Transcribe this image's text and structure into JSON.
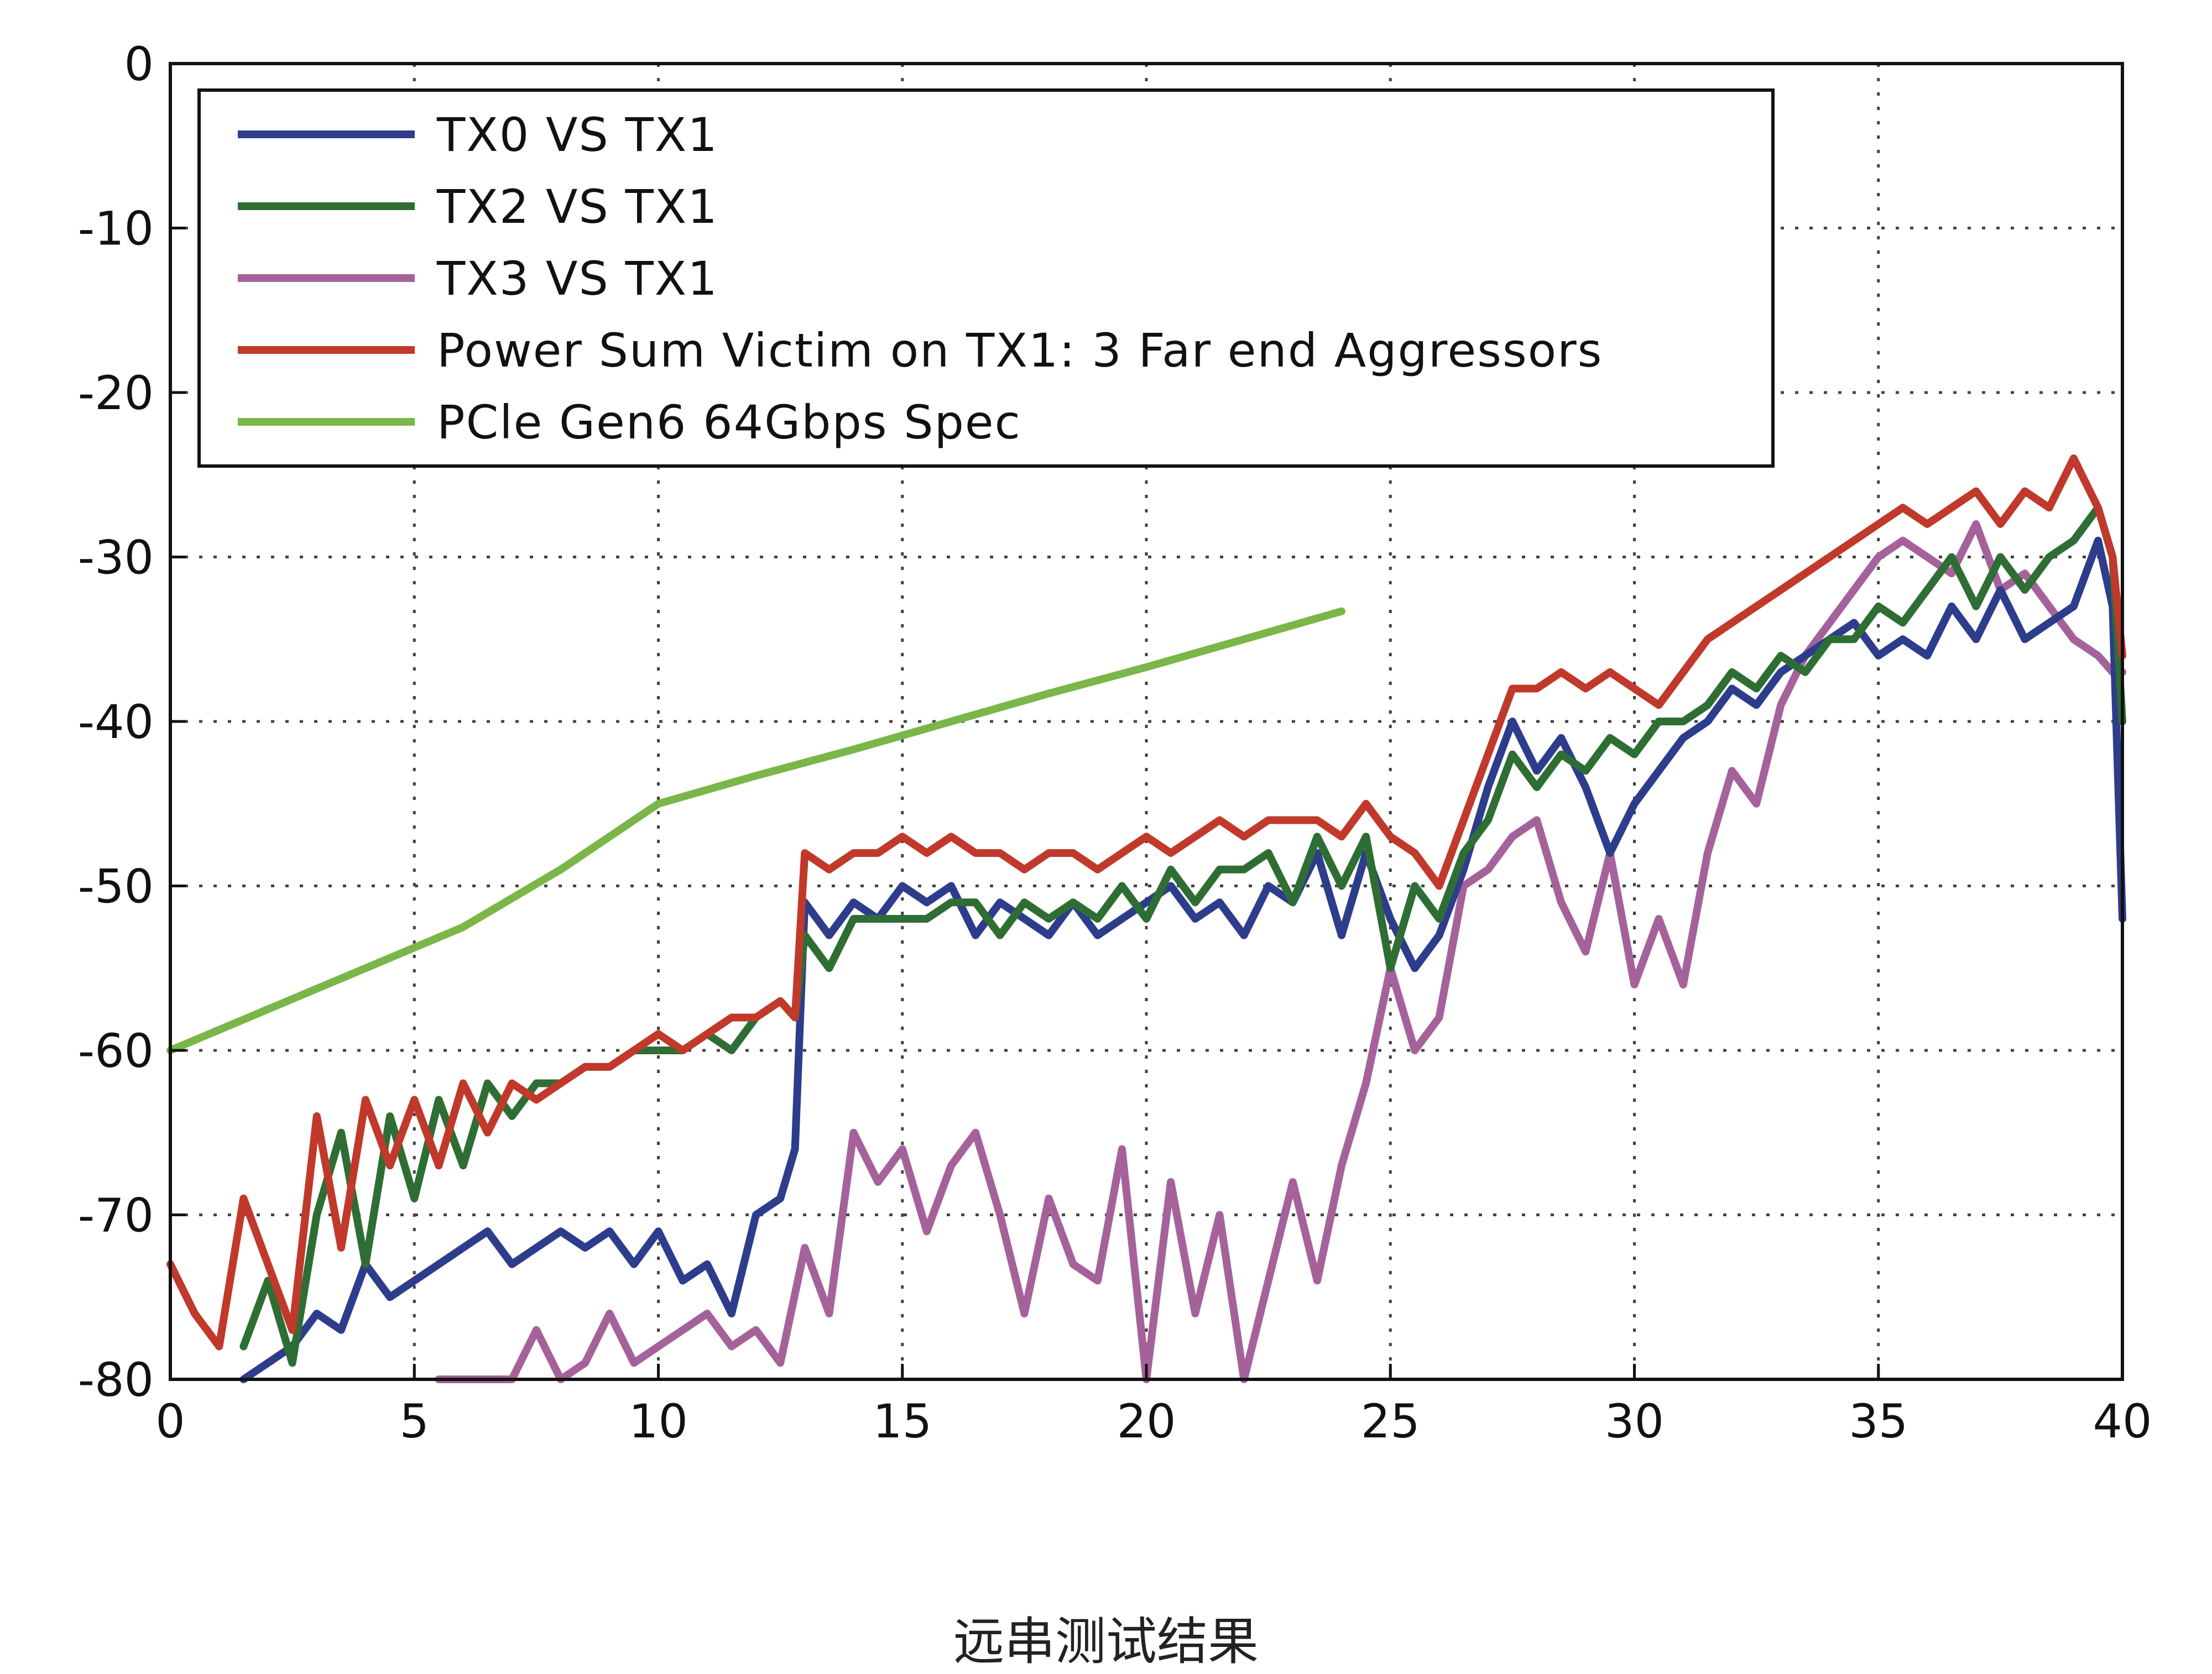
{
  "caption": "远串测试结果",
  "chart_data": {
    "type": "line",
    "title": "",
    "xlabel": "",
    "ylabel": "",
    "xlim": [
      0,
      40
    ],
    "ylim": [
      -80,
      0
    ],
    "x_ticks": [
      0,
      5,
      10,
      15,
      20,
      25,
      30,
      35,
      40
    ],
    "y_ticks": [
      0,
      -10,
      -20,
      -30,
      -40,
      -50,
      -60,
      -70,
      -80
    ],
    "x_tick_labels": [
      "0",
      "5",
      "10",
      "15",
      "20",
      "25",
      "30",
      "35",
      "40"
    ],
    "y_tick_labels": [
      "0",
      "-10",
      "-20",
      "-30",
      "-40",
      "-50",
      "-60",
      "-70",
      "-80"
    ],
    "grid": true,
    "legend_position": "top-left",
    "series": [
      {
        "name": "TX0 VS TX1",
        "color": "#2e3c8c",
        "x": [
          1.5,
          2.0,
          2.5,
          3.0,
          3.5,
          4.0,
          4.5,
          5.0,
          5.5,
          6.0,
          6.5,
          7.0,
          7.5,
          8.0,
          8.5,
          9.0,
          9.5,
          10.0,
          10.5,
          11.0,
          11.5,
          12.0,
          12.5,
          12.8,
          13.0,
          13.5,
          14.0,
          14.5,
          15.0,
          15.5,
          16.0,
          16.5,
          17.0,
          17.5,
          18.0,
          18.5,
          19.0,
          19.5,
          20.0,
          20.5,
          21.0,
          21.5,
          22.0,
          22.5,
          23.0,
          23.5,
          24.0,
          24.5,
          25.0,
          25.5,
          26.0,
          26.5,
          27.0,
          27.5,
          28.0,
          28.5,
          29.0,
          29.5,
          30.0,
          30.5,
          31.0,
          31.5,
          32.0,
          32.5,
          33.0,
          33.5,
          34.0,
          34.5,
          35.0,
          35.5,
          36.0,
          36.5,
          37.0,
          37.5,
          38.0,
          38.5,
          39.0,
          39.5,
          39.8,
          40.0
        ],
        "values": [
          -80,
          -79,
          -78,
          -76,
          -77,
          -73,
          -75,
          -74,
          -73,
          -72,
          -71,
          -73,
          -72,
          -71,
          -72,
          -71,
          -73,
          -71,
          -74,
          -73,
          -76,
          -70,
          -69,
          -66,
          -51,
          -53,
          -51,
          -52,
          -50,
          -51,
          -50,
          -53,
          -51,
          -52,
          -53,
          -51,
          -53,
          -52,
          -51,
          -50,
          -52,
          -51,
          -53,
          -50,
          -51,
          -48,
          -53,
          -48,
          -52,
          -55,
          -53,
          -49,
          -44,
          -40,
          -43,
          -41,
          -44,
          -48,
          -45,
          -43,
          -41,
          -40,
          -38,
          -39,
          -37,
          -36,
          -35,
          -34,
          -36,
          -35,
          -36,
          -33,
          -35,
          -32,
          -35,
          -34,
          -33,
          -29,
          -33,
          -52
        ]
      },
      {
        "name": "TX2 VS TX1",
        "color": "#2e6e34",
        "x": [
          1.5,
          2.0,
          2.5,
          3.0,
          3.5,
          4.0,
          4.5,
          5.0,
          5.5,
          6.0,
          6.5,
          7.0,
          7.5,
          8.0,
          8.5,
          9.0,
          9.5,
          10.0,
          10.5,
          11.0,
          11.5,
          12.0,
          12.5,
          12.8,
          13.0,
          13.5,
          14.0,
          14.5,
          15.0,
          15.5,
          16.0,
          16.5,
          17.0,
          17.5,
          18.0,
          18.5,
          19.0,
          19.5,
          20.0,
          20.5,
          21.0,
          21.5,
          22.0,
          22.5,
          23.0,
          23.5,
          24.0,
          24.5,
          25.0,
          25.5,
          26.0,
          26.5,
          27.0,
          27.5,
          28.0,
          28.5,
          29.0,
          29.5,
          30.0,
          30.5,
          31.0,
          31.5,
          32.0,
          32.5,
          33.0,
          33.5,
          34.0,
          34.5,
          35.0,
          35.5,
          36.0,
          36.5,
          37.0,
          37.5,
          38.0,
          38.5,
          39.0,
          39.5,
          39.8,
          40.0
        ],
        "values": [
          -78,
          -74,
          -79,
          -70,
          -65,
          -73,
          -64,
          -69,
          -63,
          -67,
          -62,
          -64,
          -62,
          -62,
          -61,
          -61,
          -60,
          -60,
          -60,
          -59,
          -60,
          -58,
          -57,
          -58,
          -53,
          -55,
          -52,
          -52,
          -52,
          -52,
          -51,
          -51,
          -53,
          -51,
          -52,
          -51,
          -52,
          -50,
          -52,
          -49,
          -51,
          -49,
          -49,
          -48,
          -51,
          -47,
          -50,
          -47,
          -55,
          -50,
          -52,
          -48,
          -46,
          -42,
          -44,
          -42,
          -43,
          -41,
          -42,
          -40,
          -40,
          -39,
          -37,
          -38,
          -36,
          -37,
          -35,
          -35,
          -33,
          -34,
          -32,
          -30,
          -33,
          -30,
          -32,
          -30,
          -29,
          -27,
          -30,
          -40
        ]
      },
      {
        "name": "TX3 VS TX1",
        "color": "#a5629a",
        "x": [
          5.5,
          6.0,
          6.5,
          7.0,
          7.5,
          8.0,
          8.5,
          9.0,
          9.5,
          10.0,
          10.5,
          11.0,
          11.5,
          12.0,
          12.5,
          13.0,
          13.5,
          14.0,
          14.5,
          15.0,
          15.5,
          16.0,
          16.5,
          17.0,
          17.5,
          18.0,
          18.5,
          19.0,
          19.5,
          20.0,
          20.5,
          21.0,
          21.5,
          22.0,
          22.5,
          23.0,
          23.5,
          24.0,
          24.5,
          25.0,
          25.5,
          26.0,
          26.5,
          27.0,
          27.5,
          28.0,
          28.5,
          29.0,
          29.5,
          30.0,
          30.5,
          31.0,
          31.5,
          32.0,
          32.5,
          33.0,
          33.5,
          34.0,
          34.5,
          35.0,
          35.5,
          36.0,
          36.5,
          37.0,
          37.5,
          38.0,
          38.5,
          39.0,
          39.5,
          39.8,
          40.0
        ],
        "values": [
          -80,
          -80,
          -80,
          -80,
          -77,
          -80,
          -79,
          -76,
          -79,
          -78,
          -77,
          -76,
          -78,
          -77,
          -79,
          -72,
          -76,
          -65,
          -68,
          -66,
          -71,
          -67,
          -65,
          -70,
          -76,
          -69,
          -73,
          -74,
          -66,
          -80,
          -68,
          -76,
          -70,
          -80,
          -74,
          -68,
          -74,
          -67,
          -62,
          -55,
          -60,
          -58,
          -50,
          -49,
          -47,
          -46,
          -51,
          -54,
          -48,
          -56,
          -52,
          -56,
          -48,
          -43,
          -45,
          -39,
          -36,
          -34,
          -32,
          -30,
          -29,
          -30,
          -31,
          -28,
          -32,
          -31,
          -33,
          -35,
          -36,
          -37,
          -37
        ]
      },
      {
        "name": "Power Sum Victim on TX1:   3 Far end Aggressors",
        "color": "#c0392b",
        "x": [
          0.0,
          0.5,
          1.0,
          1.5,
          2.0,
          2.5,
          3.0,
          3.5,
          4.0,
          4.5,
          5.0,
          5.5,
          6.0,
          6.5,
          7.0,
          7.5,
          8.0,
          8.5,
          9.0,
          9.5,
          10.0,
          10.5,
          11.0,
          11.5,
          12.0,
          12.5,
          12.8,
          13.0,
          13.5,
          14.0,
          14.5,
          15.0,
          15.5,
          16.0,
          16.5,
          17.0,
          17.5,
          18.0,
          18.5,
          19.0,
          19.5,
          20.0,
          20.5,
          21.0,
          21.5,
          22.0,
          22.5,
          23.0,
          23.5,
          24.0,
          24.5,
          25.0,
          25.5,
          26.0,
          26.5,
          27.0,
          27.5,
          28.0,
          28.5,
          29.0,
          29.5,
          30.0,
          30.5,
          31.0,
          31.5,
          32.0,
          32.5,
          33.0,
          33.5,
          34.0,
          34.5,
          35.0,
          35.5,
          36.0,
          36.5,
          37.0,
          37.5,
          38.0,
          38.5,
          39.0,
          39.5,
          39.8,
          40.0
        ],
        "values": [
          -73,
          -76,
          -78,
          -69,
          -73,
          -77,
          -64,
          -72,
          -63,
          -67,
          -63,
          -67,
          -62,
          -65,
          -62,
          -63,
          -62,
          -61,
          -61,
          -60,
          -59,
          -60,
          -59,
          -58,
          -58,
          -57,
          -58,
          -48,
          -49,
          -48,
          -48,
          -47,
          -48,
          -47,
          -48,
          -48,
          -49,
          -48,
          -48,
          -49,
          -48,
          -47,
          -48,
          -47,
          -46,
          -47,
          -46,
          -46,
          -46,
          -47,
          -45,
          -47,
          -48,
          -50,
          -46,
          -42,
          -38,
          -38,
          -37,
          -38,
          -37,
          -38,
          -39,
          -37,
          -35,
          -34,
          -33,
          -32,
          -31,
          -30,
          -29,
          -28,
          -27,
          -28,
          -27,
          -26,
          -28,
          -26,
          -27,
          -24,
          -27,
          -30,
          -36
        ]
      },
      {
        "name": "PCle Gen6 64Gbps Spec",
        "color": "#7ab648",
        "x": [
          0,
          2,
          4,
          6,
          8,
          10,
          12,
          14,
          16,
          18,
          20,
          22,
          24
        ],
        "values": [
          -60,
          -57.5,
          -55,
          -52.5,
          -49,
          -45,
          -43.3,
          -41.7,
          -40,
          -38.3,
          -36.7,
          -35,
          -33.3
        ]
      }
    ]
  }
}
